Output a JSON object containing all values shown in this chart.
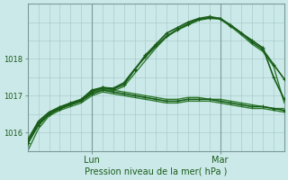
{
  "title": "",
  "xlabel": "Pression niveau de la mer( hPa )",
  "ylabel": "",
  "bg_color": "#cce9e9",
  "grid_color": "#aacccc",
  "line_color_dark": "#1a5c1a",
  "line_color_mid": "#2e7d2e",
  "ylim": [
    1015.5,
    1019.5
  ],
  "xlim": [
    0,
    48
  ],
  "xtick_positions": [
    12,
    36
  ],
  "xtick_labels": [
    "Lun",
    "Mar"
  ],
  "ytick_positions": [
    1016,
    1017,
    1018
  ],
  "ytick_labels": [
    "1016",
    "1017",
    "1018"
  ],
  "vlines": [
    12,
    36
  ],
  "series": [
    {
      "x": [
        0,
        2,
        4,
        6,
        8,
        10,
        12,
        14,
        16,
        18,
        20,
        22,
        24,
        26,
        28,
        30,
        32,
        34,
        36,
        38,
        40,
        42,
        44,
        46,
        48
      ],
      "y": [
        1015.7,
        1016.2,
        1016.5,
        1016.65,
        1016.75,
        1016.85,
        1017.05,
        1017.15,
        1017.1,
        1017.05,
        1017.0,
        1016.95,
        1016.9,
        1016.85,
        1016.85,
        1016.9,
        1016.9,
        1016.9,
        1016.85,
        1016.8,
        1016.75,
        1016.7,
        1016.7,
        1016.65,
        1016.6
      ],
      "marker": true,
      "lw": 1.2
    },
    {
      "x": [
        0,
        2,
        4,
        6,
        8,
        10,
        12,
        14,
        16,
        18,
        20,
        22,
        24,
        26,
        28,
        30,
        32,
        34,
        36,
        38,
        40,
        42,
        44,
        46,
        48
      ],
      "y": [
        1015.7,
        1016.3,
        1016.55,
        1016.7,
        1016.8,
        1016.85,
        1017.1,
        1017.2,
        1017.15,
        1017.1,
        1017.05,
        1017.0,
        1016.95,
        1016.9,
        1016.9,
        1016.95,
        1016.95,
        1016.9,
        1016.9,
        1016.85,
        1016.8,
        1016.75,
        1016.7,
        1016.65,
        1016.65
      ],
      "marker": false,
      "lw": 1.0
    },
    {
      "x": [
        0,
        2,
        4,
        6,
        8,
        10,
        12,
        14,
        16,
        18,
        20,
        22,
        24,
        26,
        28,
        30,
        32,
        34,
        36,
        38,
        40,
        42,
        44,
        46,
        48
      ],
      "y": [
        1015.5,
        1016.1,
        1016.45,
        1016.6,
        1016.7,
        1016.8,
        1017.0,
        1017.1,
        1017.05,
        1017.0,
        1016.95,
        1016.9,
        1016.85,
        1016.8,
        1016.8,
        1016.85,
        1016.85,
        1016.85,
        1016.8,
        1016.75,
        1016.7,
        1016.65,
        1016.65,
        1016.6,
        1016.55
      ],
      "marker": false,
      "lw": 1.0
    },
    {
      "x": [
        0,
        2,
        4,
        6,
        8,
        10,
        12,
        14,
        16,
        18,
        20,
        22,
        24,
        26,
        28,
        30,
        32,
        34,
        36,
        38,
        40,
        42,
        44,
        46,
        48
      ],
      "y": [
        1015.7,
        1016.25,
        1016.5,
        1016.65,
        1016.78,
        1016.88,
        1017.12,
        1017.22,
        1017.18,
        1017.3,
        1017.7,
        1018.1,
        1018.4,
        1018.7,
        1018.85,
        1019.0,
        1019.1,
        1019.15,
        1019.1,
        1018.9,
        1018.7,
        1018.5,
        1018.3,
        1017.5,
        1016.9
      ],
      "marker": true,
      "lw": 1.2
    },
    {
      "x": [
        0,
        2,
        4,
        6,
        8,
        10,
        12,
        14,
        16,
        18,
        20,
        22,
        24,
        26,
        28,
        30,
        32,
        34,
        36,
        38,
        40,
        42,
        44,
        46,
        48
      ],
      "y": [
        1015.7,
        1016.2,
        1016.48,
        1016.63,
        1016.75,
        1016.85,
        1017.08,
        1017.18,
        1017.13,
        1017.25,
        1017.6,
        1017.95,
        1018.3,
        1018.6,
        1018.78,
        1018.92,
        1019.05,
        1019.1,
        1019.08,
        1018.88,
        1018.65,
        1018.4,
        1018.2,
        1017.8,
        1016.8
      ],
      "marker": false,
      "lw": 1.0
    },
    {
      "x": [
        0,
        2,
        4,
        6,
        8,
        10,
        12,
        14,
        16,
        18,
        20,
        22,
        24,
        26,
        28,
        30,
        32,
        34,
        36,
        38,
        40,
        42,
        44,
        46,
        48
      ],
      "y": [
        1015.8,
        1016.3,
        1016.55,
        1016.68,
        1016.8,
        1016.9,
        1017.15,
        1017.22,
        1017.2,
        1017.35,
        1017.72,
        1018.05,
        1018.35,
        1018.62,
        1018.8,
        1018.95,
        1019.08,
        1019.12,
        1019.1,
        1018.92,
        1018.7,
        1018.45,
        1018.25,
        1017.85,
        1017.45
      ],
      "marker": true,
      "lw": 1.2
    }
  ]
}
